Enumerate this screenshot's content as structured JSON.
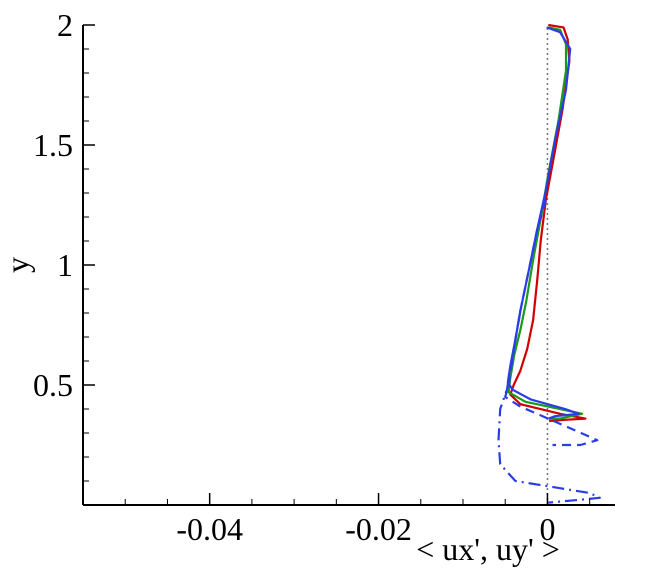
{
  "chart_data": {
    "type": "line",
    "xlabel": "< ux', uy' >",
    "ylabel": "y",
    "xlim": [
      -0.055,
      0.008
    ],
    "ylim": [
      0,
      2
    ],
    "xticks": [
      -0.04,
      -0.02,
      0
    ],
    "yticks": [
      0.5,
      1,
      1.5,
      2
    ],
    "xminorticks": [
      -0.05,
      -0.045,
      -0.035,
      -0.03,
      -0.025,
      -0.015,
      -0.01,
      -0.005,
      0.005
    ],
    "yminorticks": [
      0.1,
      0.2,
      0.3,
      0.4,
      0.6,
      0.7,
      0.8,
      0.9,
      1.1,
      1.2,
      1.3,
      1.4,
      1.6,
      1.7,
      1.8,
      1.9
    ],
    "vline": 0,
    "series": [
      {
        "color": "#d00000",
        "style": "solid",
        "x": [
          0.0001,
          0.0019,
          0.0024,
          0.0026,
          0.0018,
          0.0007,
          -0.0002,
          -0.0008,
          -0.0012,
          -0.0017,
          -0.0024,
          -0.0032,
          -0.004,
          -0.0044,
          -0.0032,
          0.0015,
          0.0045,
          0.0021,
          0.0002
        ],
        "y": [
          2.0,
          1.99,
          1.94,
          1.85,
          1.65,
          1.44,
          1.27,
          1.1,
          0.94,
          0.77,
          0.65,
          0.56,
          0.5,
          0.46,
          0.42,
          0.38,
          0.36,
          0.355,
          0.35
        ]
      },
      {
        "color": "#1a9a1a",
        "style": "solid",
        "x": [
          0.0001,
          0.0015,
          0.0022,
          0.0022,
          0.0013,
          0.0001,
          -0.0007,
          -0.0017,
          -0.0025,
          -0.0032,
          -0.0039,
          -0.0044,
          -0.0046,
          -0.0026,
          0.0015,
          0.0041,
          0.0015,
          0.0002
        ],
        "y": [
          1.99,
          1.98,
          1.92,
          1.81,
          1.6,
          1.38,
          1.21,
          1.02,
          0.85,
          0.73,
          0.63,
          0.53,
          0.47,
          0.43,
          0.4,
          0.38,
          0.36,
          0.36
        ]
      },
      {
        "color": "#2a3ee8",
        "style": "solid",
        "x": [
          -0.0001,
          0.0015,
          0.0027,
          0.0022,
          0.0009,
          -0.0002,
          -0.0012,
          -0.0022,
          -0.0032,
          -0.0038,
          -0.0044,
          -0.0047,
          -0.0041,
          -0.002,
          0.0021,
          0.0037,
          0.0009,
          0.0001
        ],
        "y": [
          1.99,
          1.97,
          1.9,
          1.73,
          1.52,
          1.31,
          1.15,
          0.98,
          0.81,
          0.69,
          0.58,
          0.51,
          0.48,
          0.44,
          0.4,
          0.38,
          0.37,
          0.36
        ]
      },
      {
        "color": "#2a3ee8",
        "style": "dashed",
        "x": [
          -0.0002,
          -0.0012,
          -0.0022,
          -0.0032,
          -0.0038,
          -0.0046,
          -0.005,
          -0.0032,
          0.0027,
          0.0059,
          0.0039,
          0.0006
        ],
        "y": [
          1.27,
          1.15,
          0.98,
          0.81,
          0.69,
          0.5,
          0.45,
          0.41,
          0.32,
          0.27,
          0.25,
          0.25
        ]
      },
      {
        "color": "#2a3ee8",
        "style": "dashdot",
        "x": [
          -0.0032,
          -0.0048,
          -0.0056,
          -0.0058,
          -0.0056,
          -0.0038,
          0.0015,
          0.005,
          0.0062,
          0.0033,
          0.0001
        ],
        "y": [
          0.81,
          0.48,
          0.4,
          0.27,
          0.17,
          0.1,
          0.07,
          0.05,
          0.03,
          0.02,
          0.01
        ]
      }
    ]
  }
}
